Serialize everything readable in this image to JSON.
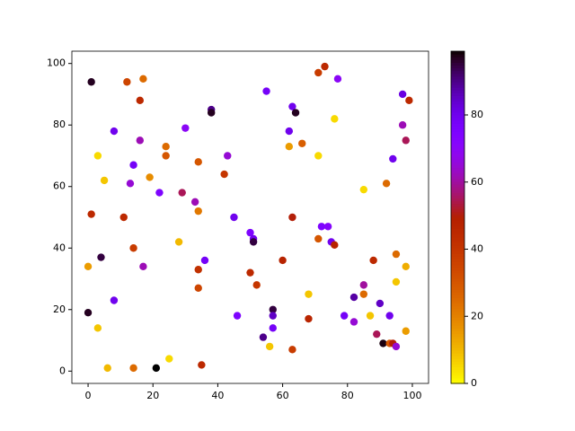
{
  "chart_data": {
    "type": "scatter",
    "x": [
      1,
      12,
      17,
      16,
      3,
      8,
      16,
      24,
      24,
      30,
      38,
      38,
      5,
      14,
      19,
      13,
      22,
      34,
      43,
      42,
      29,
      33,
      34,
      1,
      11,
      45,
      0,
      4,
      14,
      17,
      28,
      36,
      34,
      34,
      8,
      0,
      3,
      6,
      14,
      21,
      25,
      35,
      46,
      55,
      63,
      64,
      62,
      62,
      66,
      71,
      71,
      73,
      77,
      76,
      50,
      51,
      51,
      63,
      72,
      74,
      75,
      76,
      71,
      60,
      50,
      52,
      68,
      57,
      57,
      57,
      68,
      54,
      56,
      63,
      85,
      92,
      94,
      97,
      99,
      97,
      98,
      95,
      98,
      88,
      95,
      85,
      85,
      82,
      90,
      79,
      87,
      93,
      82,
      89,
      98,
      91,
      93,
      94,
      95
    ],
    "values": [
      94,
      94,
      95,
      88,
      70,
      78,
      75,
      73,
      70,
      79,
      85,
      84,
      62,
      67,
      63,
      61,
      58,
      68,
      70,
      64,
      58,
      55,
      52,
      51,
      50,
      50,
      34,
      37,
      40,
      34,
      42,
      36,
      33,
      27,
      23,
      19,
      14,
      1,
      1,
      1,
      4,
      2,
      18,
      91,
      86,
      84,
      78,
      73,
      74,
      70,
      97,
      99,
      95,
      82,
      45,
      43,
      42,
      50,
      47,
      47,
      42,
      41,
      43,
      36,
      32,
      28,
      25,
      20,
      18,
      14,
      17,
      11,
      8,
      7,
      59,
      61,
      69,
      90,
      88,
      80,
      75,
      38,
      34,
      36,
      29,
      28,
      25,
      24,
      22,
      18,
      18,
      18,
      16,
      12,
      13,
      9,
      9,
      9,
      8
    ],
    "c": [
      97,
      35,
      25,
      45,
      5,
      80,
      62,
      25,
      30,
      70,
      90,
      97,
      8,
      78,
      18,
      65,
      75,
      30,
      65,
      40,
      55,
      62,
      22,
      45,
      45,
      80,
      15,
      95,
      38,
      62,
      10,
      78,
      42,
      35,
      80,
      97,
      8,
      10,
      25,
      99,
      5,
      45,
      75,
      78,
      80,
      97,
      80,
      15,
      28,
      5,
      38,
      45,
      70,
      5,
      75,
      80,
      95,
      50,
      75,
      72,
      80,
      48,
      30,
      48,
      45,
      40,
      8,
      95,
      85,
      78,
      47,
      90,
      8,
      38,
      5,
      25,
      80,
      82,
      45,
      62,
      55,
      25,
      12,
      45,
      8,
      60,
      25,
      88,
      85,
      78,
      8,
      80,
      65,
      55,
      15,
      98,
      30,
      50,
      65
    ],
    "colormap": "gnuplot_r",
    "clim": [
      0,
      99
    ],
    "cticks": [
      0,
      20,
      40,
      60,
      80
    ],
    "xlim": [
      -5,
      105
    ],
    "ylim": [
      -4,
      104
    ],
    "xticks": [
      0,
      20,
      40,
      60,
      80,
      100
    ],
    "yticks": [
      0,
      20,
      40,
      60,
      80,
      100
    ],
    "grid": false
  }
}
